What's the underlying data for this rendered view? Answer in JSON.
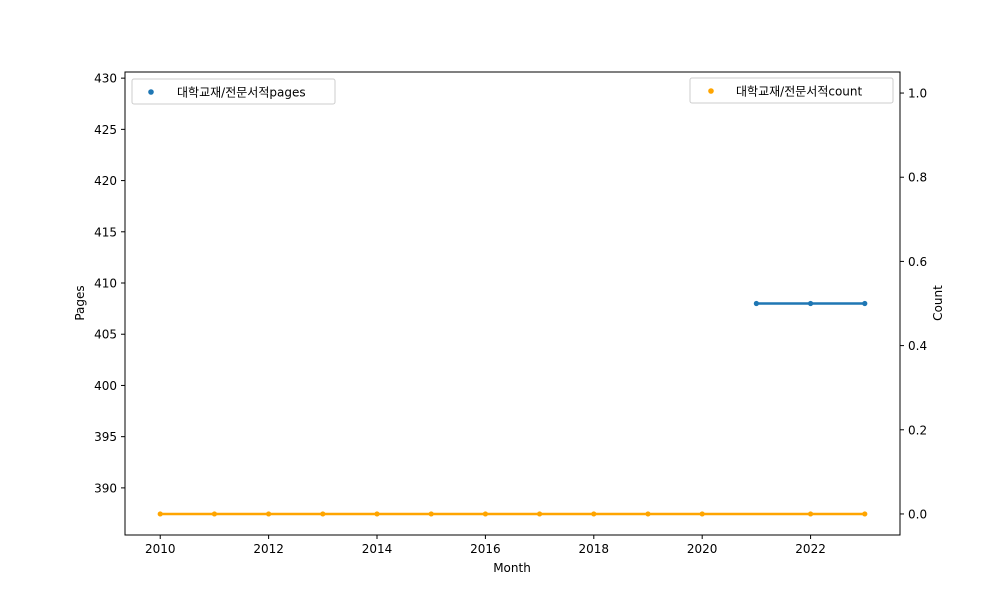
{
  "chart_data": {
    "type": "line",
    "xlabel": "Month",
    "ylabel": "Pages",
    "y2label": "Count",
    "xlim": [
      2009.35,
      2023.65
    ],
    "ylim": [
      385.4,
      430.6
    ],
    "y2lim": [
      -0.05,
      1.05
    ],
    "x_ticks": [
      "2010",
      "2012",
      "2014",
      "2016",
      "2018",
      "2020",
      "2022"
    ],
    "y_ticks": [
      "390",
      "395",
      "400",
      "405",
      "410",
      "415",
      "420",
      "425",
      "430"
    ],
    "y2_ticks": [
      "0.0",
      "0.2",
      "0.4",
      "0.6",
      "0.8",
      "1.0"
    ],
    "grid": false,
    "series": [
      {
        "name": "대학교재/전문서적pages",
        "axis": "left",
        "color": "#1f77b4",
        "x": [
          2021,
          2022,
          2023
        ],
        "values": [
          408,
          408,
          408
        ],
        "legend_position": "upper-left"
      },
      {
        "name": "대학교재/전문서적count",
        "axis": "right",
        "color": "#ffa500",
        "x": [
          2010,
          2011,
          2012,
          2013,
          2014,
          2015,
          2016,
          2017,
          2018,
          2019,
          2020,
          2022,
          2023
        ],
        "values": [
          0,
          0,
          0,
          0,
          0,
          0,
          0,
          0,
          0,
          0,
          0,
          0,
          0
        ],
        "legend_position": "upper-right"
      }
    ]
  }
}
